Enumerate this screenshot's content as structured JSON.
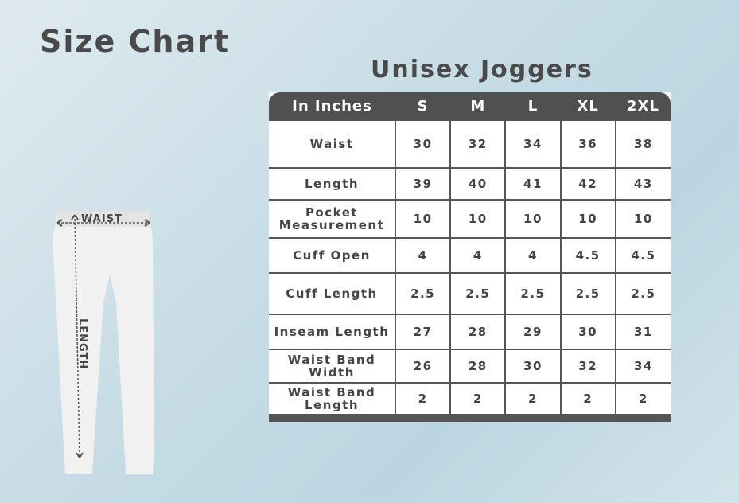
{
  "title": "Size Chart",
  "subtitle": "Unisex Joggers",
  "diagram": {
    "waist_label": "WAIST",
    "length_label": "LENGTH"
  },
  "table": {
    "headers": [
      "In Inches",
      "S",
      "M",
      "L",
      "XL",
      "2XL"
    ],
    "rows": [
      {
        "label": "Waist",
        "values": [
          "30",
          "32",
          "34",
          "36",
          "38"
        ]
      },
      {
        "label": "Length",
        "values": [
          "39",
          "40",
          "41",
          "42",
          "43"
        ]
      },
      {
        "label": "Pocket Measurement",
        "values": [
          "10",
          "10",
          "10",
          "10",
          "10"
        ]
      },
      {
        "label": "Cuff Open",
        "values": [
          "4",
          "4",
          "4",
          "4.5",
          "4.5"
        ]
      },
      {
        "label": "Cuff Length",
        "values": [
          "2.5",
          "2.5",
          "2.5",
          "2.5",
          "2.5"
        ]
      },
      {
        "label": "Inseam Length",
        "values": [
          "27",
          "28",
          "29",
          "30",
          "31"
        ]
      },
      {
        "label": "Waist Band Width",
        "values": [
          "26",
          "28",
          "30",
          "32",
          "34"
        ]
      },
      {
        "label": "Waist Band Length",
        "values": [
          "2",
          "2",
          "2",
          "2",
          "2"
        ]
      }
    ]
  },
  "colors": {
    "header": "#505050",
    "text": "#444444"
  }
}
